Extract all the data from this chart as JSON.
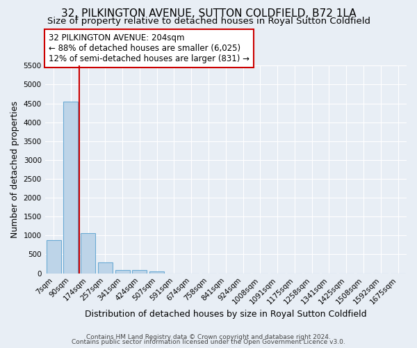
{
  "title": "32, PILKINGTON AVENUE, SUTTON COLDFIELD, B72 1LA",
  "subtitle": "Size of property relative to detached houses in Royal Sutton Coldfield",
  "xlabel": "Distribution of detached houses by size in Royal Sutton Coldfield",
  "ylabel": "Number of detached properties",
  "footer1": "Contains HM Land Registry data © Crown copyright and database right 2024.",
  "footer2": "Contains public sector information licensed under the Open Government Licence v3.0.",
  "bar_labels": [
    "7sqm",
    "90sqm",
    "174sqm",
    "257sqm",
    "341sqm",
    "424sqm",
    "507sqm",
    "591sqm",
    "674sqm",
    "758sqm",
    "841sqm",
    "924sqm",
    "1008sqm",
    "1091sqm",
    "1175sqm",
    "1258sqm",
    "1341sqm",
    "1425sqm",
    "1508sqm",
    "1592sqm",
    "1675sqm"
  ],
  "bar_values": [
    880,
    4550,
    1060,
    285,
    85,
    75,
    55,
    0,
    0,
    0,
    0,
    0,
    0,
    0,
    0,
    0,
    0,
    0,
    0,
    0,
    0
  ],
  "bar_color": "#bdd4e8",
  "bar_edge_color": "#6aaad4",
  "property_line_x": 1.5,
  "property_line_color": "#cc0000",
  "annotation_text": "32 PILKINGTON AVENUE: 204sqm\n← 88% of detached houses are smaller (6,025)\n12% of semi-detached houses are larger (831) →",
  "annotation_box_color": "#ffffff",
  "annotation_box_edge": "#cc0000",
  "ylim": [
    0,
    5500
  ],
  "yticks": [
    0,
    500,
    1000,
    1500,
    2000,
    2500,
    3000,
    3500,
    4000,
    4500,
    5000,
    5500
  ],
  "background_color": "#e8eef5",
  "grid_color": "#ffffff",
  "title_fontsize": 11,
  "subtitle_fontsize": 9.5,
  "xlabel_fontsize": 9,
  "ylabel_fontsize": 9,
  "tick_fontsize": 7.5,
  "footer_fontsize": 6.5
}
